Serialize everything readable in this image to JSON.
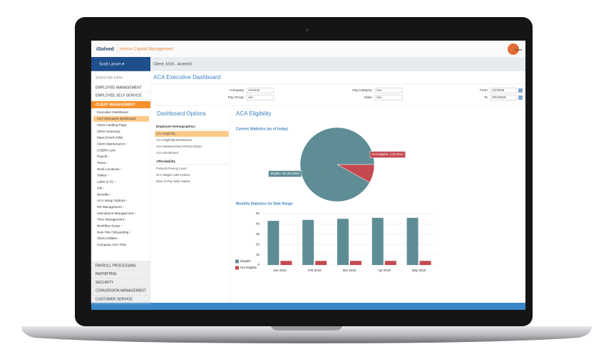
{
  "header": {
    "logo": "iSolved",
    "company": "Horton Capital Management",
    "avatar": "Acme"
  },
  "user": "Scott Larsen ▾",
  "client": "Client: 1016 - Acme16",
  "sidebar": {
    "search": "Search the menu",
    "top": [
      "EMPLOYEE MANAGEMENT",
      "EMPLOYEE SELF SERVICE"
    ],
    "active": "CLIENT MANAGEMENT",
    "items": [
      "Executive Dashboard",
      "ACA Executive Dashboard",
      "Client Landing Page",
      "Client Summary",
      "Mass Email Utility",
      "Client Maintenance ›",
      "COBRA Link",
      "Payroll ›",
      "Taxes ›",
      "Work Locations ›",
      "Tables ›",
      "Labor & GL ›",
      "Job ›",
      "Benefits ›",
      "ACA Setup Options ›",
      "HR Management ›",
      "Attendance Management ›",
      "Time Management ›",
      "Workflow Setup ›",
      "New Hire Onboarding ›",
      "Client Utilities ›",
      "Company ACH Files"
    ],
    "bottom": [
      "PAYROLL PROCESSING",
      "REPORTING",
      "SECURITY",
      "CONVERSION MANAGEMENT",
      "CUSTOMER SERVICE"
    ]
  },
  "page_title": "ACA Executive Dashboard",
  "filters": [
    {
      "label": "Company:",
      "value": "Acme16"
    },
    {
      "label": "Pay Group:",
      "value": "ALL"
    },
    {
      "label": "Org Category:",
      "value": "ALL"
    },
    {
      "label": "Value:",
      "value": "ALL"
    },
    {
      "label": "From:",
      "value": "1/1/2018"
    },
    {
      "label": "To:",
      "value": "3/31/2018"
    }
  ],
  "options": {
    "title": "Dashboard Options",
    "groups": [
      {
        "title": "Employee Demographics",
        "items": [
          "ACA Eligibility",
          "ACA Eligibility Breakdown",
          "ACA Measurement Period Status",
          "ACA Enrollment"
        ]
      },
      {
        "title": "Affordability",
        "items": [
          "Federal Poverty Level",
          "W-2 Wages Safe Harbor",
          "Rate of Pay Safe Harbor"
        ]
      }
    ]
  },
  "section_title": "ACA Eligibility",
  "chart_data": [
    {
      "type": "pie",
      "title": "Current Statistics (as of today)",
      "values": [
        46,
        4
      ],
      "value_labels": [
        "Eligible: 46 (92.00%)",
        "Not Eligible: 4 (8.00%)"
      ],
      "colors": [
        "#5f8d96",
        "#c4484f"
      ]
    },
    {
      "type": "bar",
      "title": "Monthly Statistics for Date Range",
      "categories": [
        "Jan-2018",
        "Feb-2018",
        "Mar-2018",
        "Apr-2018",
        "May-2018"
      ],
      "series": [
        {
          "name": "Eligible",
          "color": "#5f8d96",
          "values": [
            43,
            44,
            45,
            46,
            46
          ]
        },
        {
          "name": "Not Eligible",
          "color": "#c4484f",
          "values": [
            4,
            4,
            4,
            4,
            4
          ]
        }
      ],
      "ylim": [
        0,
        50
      ],
      "yticks": [
        0,
        10,
        20,
        30,
        40,
        50
      ],
      "grid": true
    }
  ]
}
